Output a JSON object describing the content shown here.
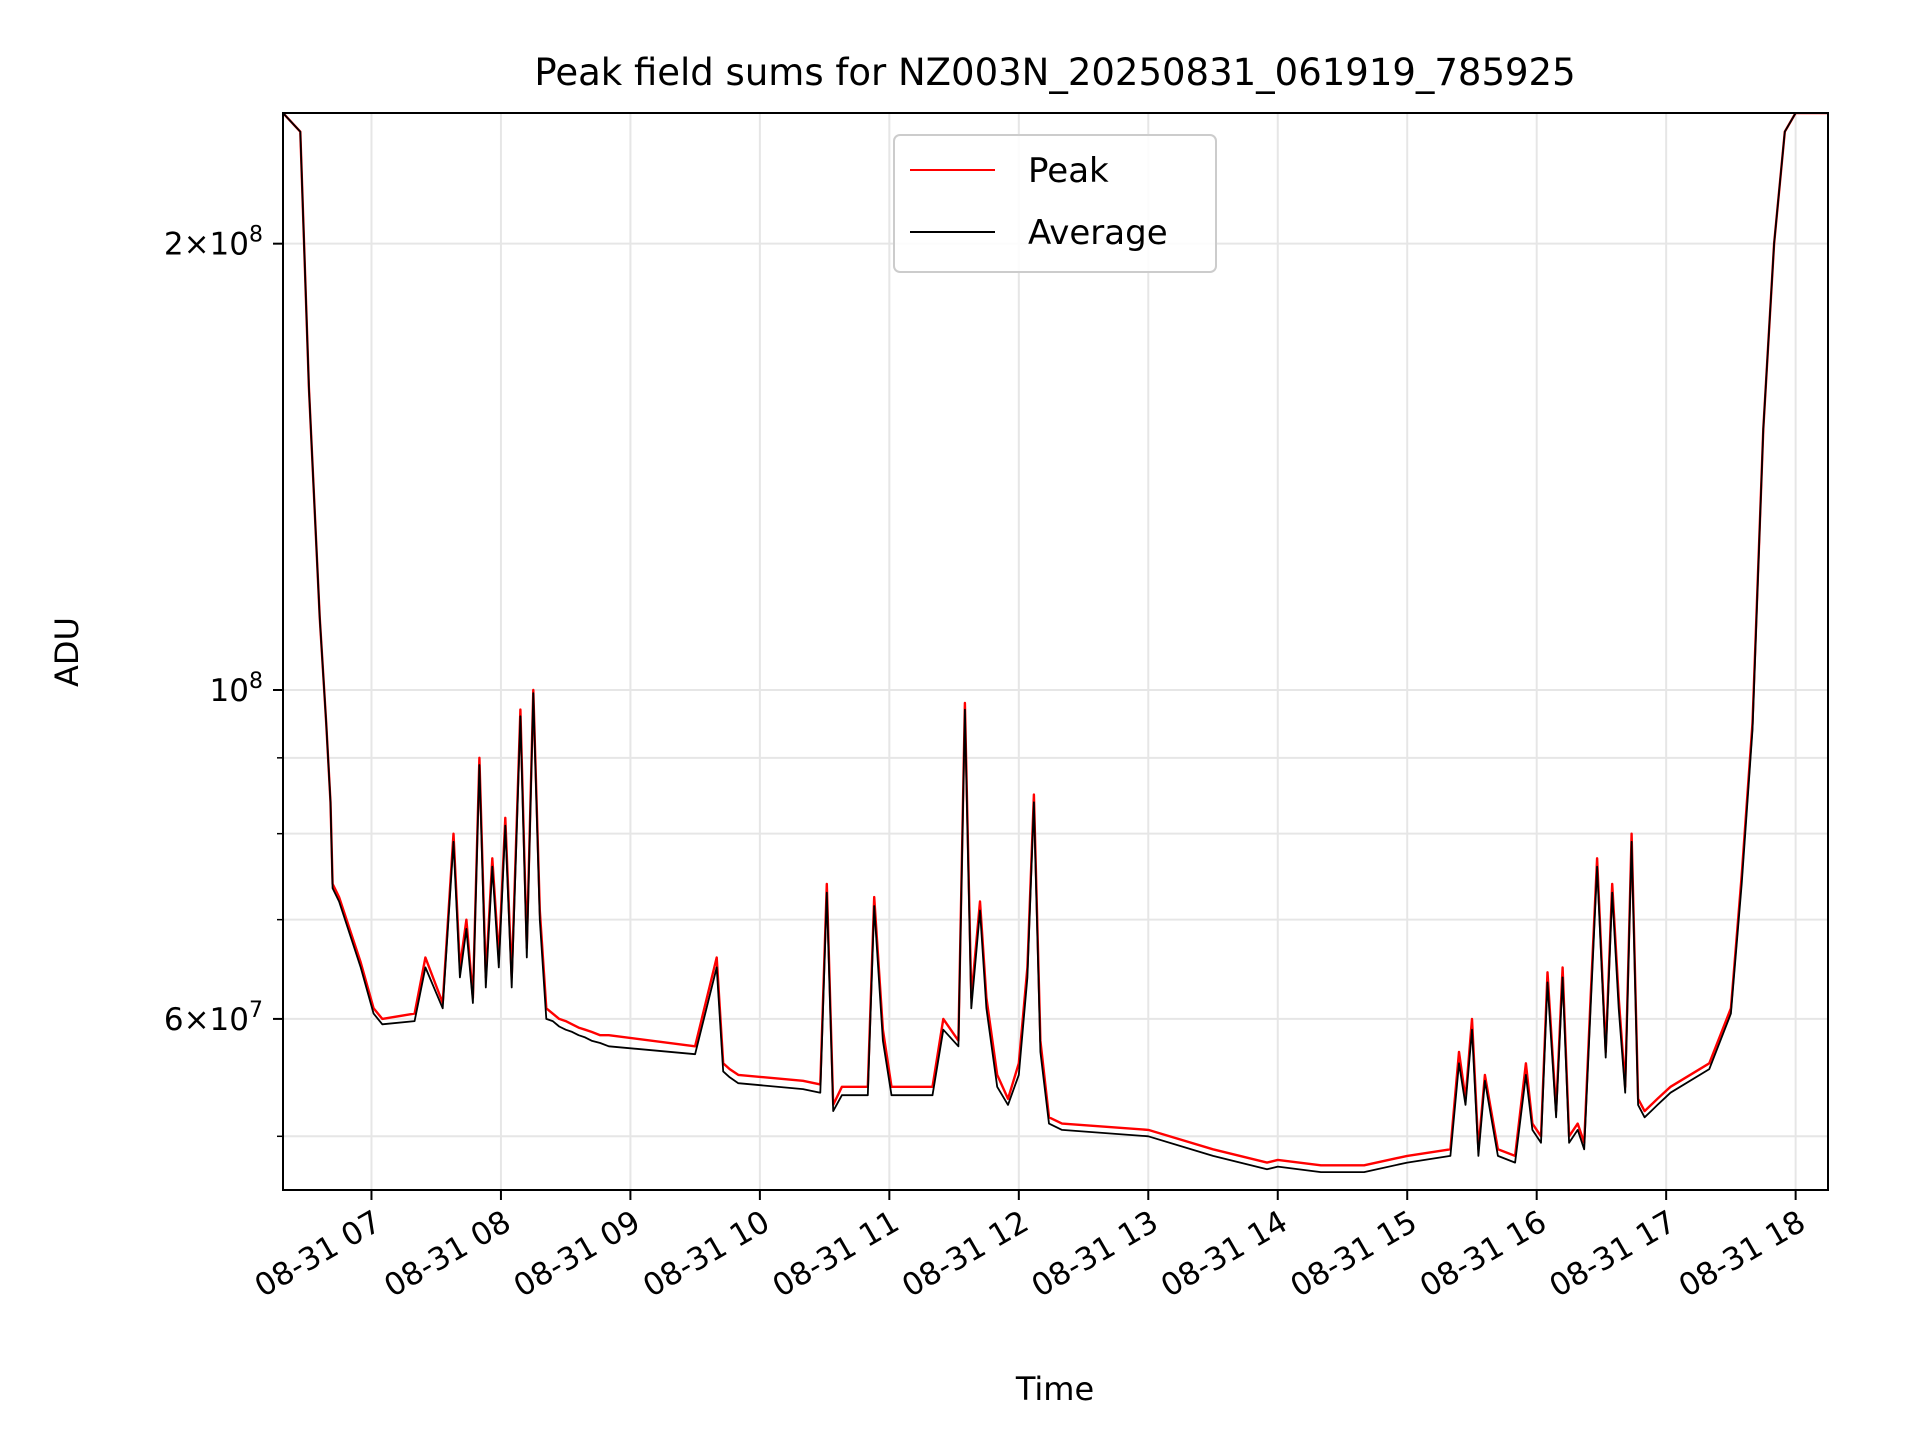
{
  "chart_data": {
    "type": "line",
    "title": "Peak field sums for NZ003N_20250831_061919_785925",
    "xlabel": "Time",
    "ylabel": "ADU",
    "y_scale": "log",
    "xlim": [
      "2025-08-31 06:19",
      "2025-08-31 18:15"
    ],
    "ylim": [
      46000000,
      245000000
    ],
    "grid": true,
    "legend_position": "top-center",
    "x_ticks": [
      {
        "value": "2025-08-31 07:00",
        "label": "08-31 07"
      },
      {
        "value": "2025-08-31 08:00",
        "label": "08-31 08"
      },
      {
        "value": "2025-08-31 09:00",
        "label": "08-31 09"
      },
      {
        "value": "2025-08-31 10:00",
        "label": "08-31 10"
      },
      {
        "value": "2025-08-31 11:00",
        "label": "08-31 11"
      },
      {
        "value": "2025-08-31 12:00",
        "label": "08-31 12"
      },
      {
        "value": "2025-08-31 13:00",
        "label": "08-31 13"
      },
      {
        "value": "2025-08-31 14:00",
        "label": "08-31 14"
      },
      {
        "value": "2025-08-31 15:00",
        "label": "08-31 15"
      },
      {
        "value": "2025-08-31 16:00",
        "label": "08-31 16"
      },
      {
        "value": "2025-08-31 17:00",
        "label": "08-31 17"
      },
      {
        "value": "2025-08-31 18:00",
        "label": "08-31 18"
      }
    ],
    "y_ticks": [
      {
        "value": 60000000,
        "base": "6×10",
        "exp": "7"
      },
      {
        "value": 100000000,
        "base": "10",
        "exp": "8"
      },
      {
        "value": 200000000,
        "base": "2×10",
        "exp": "8"
      }
    ],
    "y_minor_ticks": [
      50000000,
      70000000,
      80000000,
      90000000
    ],
    "series": [
      {
        "name": "Peak",
        "color": "#ff0000",
        "x": [
          "2025-08-31 06:19",
          "2025-08-31 06:27",
          "2025-08-31 06:31",
          "2025-08-31 06:36",
          "2025-08-31 06:39",
          "2025-08-31 06:41",
          "2025-08-31 06:42",
          "2025-08-31 06:45",
          "2025-08-31 06:55",
          "2025-08-31 07:01",
          "2025-08-31 07:05",
          "2025-08-31 07:20",
          "2025-08-31 07:25",
          "2025-08-31 07:33",
          "2025-08-31 07:38",
          "2025-08-31 07:41",
          "2025-08-31 07:44",
          "2025-08-31 07:47",
          "2025-08-31 07:50",
          "2025-08-31 07:53",
          "2025-08-31 07:56",
          "2025-08-31 07:59",
          "2025-08-31 08:02",
          "2025-08-31 08:05",
          "2025-08-31 08:09",
          "2025-08-31 08:12",
          "2025-08-31 08:15",
          "2025-08-31 08:18",
          "2025-08-31 08:21",
          "2025-08-31 08:24",
          "2025-08-31 08:27",
          "2025-08-31 08:30",
          "2025-08-31 08:33",
          "2025-08-31 08:36",
          "2025-08-31 08:39",
          "2025-08-31 08:42",
          "2025-08-31 08:46",
          "2025-08-31 08:50",
          "2025-08-31 09:30",
          "2025-08-31 09:40",
          "2025-08-31 09:43",
          "2025-08-31 09:46",
          "2025-08-31 09:50",
          "2025-08-31 10:20",
          "2025-08-31 10:28",
          "2025-08-31 10:31",
          "2025-08-31 10:34",
          "2025-08-31 10:38",
          "2025-08-31 10:50",
          "2025-08-31 10:53",
          "2025-08-31 10:57",
          "2025-08-31 11:01",
          "2025-08-31 11:20",
          "2025-08-31 11:25",
          "2025-08-31 11:32",
          "2025-08-31 11:35",
          "2025-08-31 11:38",
          "2025-08-31 11:42",
          "2025-08-31 11:45",
          "2025-08-31 11:50",
          "2025-08-31 11:55",
          "2025-08-31 12:00",
          "2025-08-31 12:04",
          "2025-08-31 12:07",
          "2025-08-31 12:10",
          "2025-08-31 12:14",
          "2025-08-31 12:20",
          "2025-08-31 13:00",
          "2025-08-31 13:30",
          "2025-08-31 13:55",
          "2025-08-31 14:00",
          "2025-08-31 14:20",
          "2025-08-31 14:40",
          "2025-08-31 15:00",
          "2025-08-31 15:20",
          "2025-08-31 15:24",
          "2025-08-31 15:27",
          "2025-08-31 15:30",
          "2025-08-31 15:33",
          "2025-08-31 15:36",
          "2025-08-31 15:42",
          "2025-08-31 15:50",
          "2025-08-31 15:55",
          "2025-08-31 15:58",
          "2025-08-31 16:02",
          "2025-08-31 16:05",
          "2025-08-31 16:09",
          "2025-08-31 16:12",
          "2025-08-31 16:15",
          "2025-08-31 16:19",
          "2025-08-31 16:22",
          "2025-08-31 16:25",
          "2025-08-31 16:28",
          "2025-08-31 16:32",
          "2025-08-31 16:35",
          "2025-08-31 16:38",
          "2025-08-31 16:41",
          "2025-08-31 16:44",
          "2025-08-31 16:47",
          "2025-08-31 16:50",
          "2025-08-31 16:53",
          "2025-08-31 16:56",
          "2025-08-31 16:59",
          "2025-08-31 17:02",
          "2025-08-31 17:20",
          "2025-08-31 17:30",
          "2025-08-31 17:35",
          "2025-08-31 17:40",
          "2025-08-31 17:45",
          "2025-08-31 17:50",
          "2025-08-31 17:55",
          "2025-08-31 18:00",
          "2025-08-31 18:05",
          "2025-08-31 18:15"
        ],
        "values": [
          245000000,
          238000000,
          160000000,
          112000000,
          95000000,
          84000000,
          74000000,
          72500000,
          65500000,
          61000000,
          60000000,
          60500000,
          66000000,
          61500000,
          80000000,
          65000000,
          70000000,
          62000000,
          90000000,
          64000000,
          77000000,
          66000000,
          82000000,
          64000000,
          97000000,
          67000000,
          100000000,
          71000000,
          61000000,
          60500000,
          60000000,
          59800000,
          59500000,
          59200000,
          59000000,
          58800000,
          58500000,
          58500000,
          57500000,
          66000000,
          56000000,
          55500000,
          55000000,
          54500000,
          54200000,
          74000000,
          52500000,
          54000000,
          54000000,
          72500000,
          59000000,
          54000000,
          54000000,
          60000000,
          58000000,
          98000000,
          62000000,
          72000000,
          62000000,
          55000000,
          53000000,
          56000000,
          65000000,
          85000000,
          58000000,
          51500000,
          51000000,
          50500000,
          49000000,
          48000000,
          48200000,
          47800000,
          47800000,
          48500000,
          49000000,
          57000000,
          53000000,
          60000000,
          49000000,
          55000000,
          49000000,
          48500000,
          56000000,
          51000000,
          50000000,
          64500000,
          52000000,
          65000000,
          50000000,
          51000000,
          49500000,
          62000000,
          77000000,
          57000000,
          74000000,
          62000000,
          54000000,
          80000000,
          53000000,
          52000000,
          52500000,
          53000000,
          53500000,
          54000000,
          56000000,
          61000000,
          75000000,
          95000000,
          150000000,
          200000000,
          238000000,
          245000000,
          245000000,
          245000000
        ]
      },
      {
        "name": "Average",
        "color": "#000000",
        "x": [
          "2025-08-31 06:19",
          "2025-08-31 06:27",
          "2025-08-31 06:31",
          "2025-08-31 06:36",
          "2025-08-31 06:39",
          "2025-08-31 06:41",
          "2025-08-31 06:42",
          "2025-08-31 06:45",
          "2025-08-31 06:55",
          "2025-08-31 07:01",
          "2025-08-31 07:05",
          "2025-08-31 07:20",
          "2025-08-31 07:25",
          "2025-08-31 07:33",
          "2025-08-31 07:38",
          "2025-08-31 07:41",
          "2025-08-31 07:44",
          "2025-08-31 07:47",
          "2025-08-31 07:50",
          "2025-08-31 07:53",
          "2025-08-31 07:56",
          "2025-08-31 07:59",
          "2025-08-31 08:02",
          "2025-08-31 08:05",
          "2025-08-31 08:09",
          "2025-08-31 08:12",
          "2025-08-31 08:15",
          "2025-08-31 08:18",
          "2025-08-31 08:21",
          "2025-08-31 08:24",
          "2025-08-31 08:27",
          "2025-08-31 08:30",
          "2025-08-31 08:33",
          "2025-08-31 08:36",
          "2025-08-31 08:39",
          "2025-08-31 08:42",
          "2025-08-31 08:46",
          "2025-08-31 08:50",
          "2025-08-31 09:30",
          "2025-08-31 09:40",
          "2025-08-31 09:43",
          "2025-08-31 09:46",
          "2025-08-31 09:50",
          "2025-08-31 10:20",
          "2025-08-31 10:28",
          "2025-08-31 10:31",
          "2025-08-31 10:34",
          "2025-08-31 10:38",
          "2025-08-31 10:50",
          "2025-08-31 10:53",
          "2025-08-31 10:57",
          "2025-08-31 11:01",
          "2025-08-31 11:20",
          "2025-08-31 11:25",
          "2025-08-31 11:32",
          "2025-08-31 11:35",
          "2025-08-31 11:38",
          "2025-08-31 11:42",
          "2025-08-31 11:45",
          "2025-08-31 11:50",
          "2025-08-31 11:55",
          "2025-08-31 12:00",
          "2025-08-31 12:04",
          "2025-08-31 12:07",
          "2025-08-31 12:10",
          "2025-08-31 12:14",
          "2025-08-31 12:20",
          "2025-08-31 13:00",
          "2025-08-31 13:30",
          "2025-08-31 13:55",
          "2025-08-31 14:00",
          "2025-08-31 14:20",
          "2025-08-31 14:40",
          "2025-08-31 15:00",
          "2025-08-31 15:20",
          "2025-08-31 15:24",
          "2025-08-31 15:27",
          "2025-08-31 15:30",
          "2025-08-31 15:33",
          "2025-08-31 15:36",
          "2025-08-31 15:42",
          "2025-08-31 15:50",
          "2025-08-31 15:55",
          "2025-08-31 15:58",
          "2025-08-31 16:02",
          "2025-08-31 16:05",
          "2025-08-31 16:09",
          "2025-08-31 16:12",
          "2025-08-31 16:15",
          "2025-08-31 16:19",
          "2025-08-31 16:22",
          "2025-08-31 16:25",
          "2025-08-31 16:28",
          "2025-08-31 16:32",
          "2025-08-31 16:35",
          "2025-08-31 16:38",
          "2025-08-31 16:41",
          "2025-08-31 16:44",
          "2025-08-31 16:47",
          "2025-08-31 16:50",
          "2025-08-31 16:53",
          "2025-08-31 16:56",
          "2025-08-31 16:59",
          "2025-08-31 17:02",
          "2025-08-31 17:20",
          "2025-08-31 17:30",
          "2025-08-31 17:35",
          "2025-08-31 17:40",
          "2025-08-31 17:45",
          "2025-08-31 17:50",
          "2025-08-31 17:55",
          "2025-08-31 18:00",
          "2025-08-31 18:05",
          "2025-08-31 18:15"
        ],
        "values": [
          245000000,
          238000000,
          160000000,
          112000000,
          95000000,
          84000000,
          73500000,
          72000000,
          65000000,
          60500000,
          59500000,
          59800000,
          65000000,
          61000000,
          79000000,
          64000000,
          69000000,
          61500000,
          89000000,
          63000000,
          76000000,
          65000000,
          81000000,
          63000000,
          96000000,
          66000000,
          99500000,
          70000000,
          60000000,
          59800000,
          59300000,
          59000000,
          58800000,
          58500000,
          58300000,
          58000000,
          57800000,
          57500000,
          56800000,
          65000000,
          55300000,
          54800000,
          54300000,
          53800000,
          53500000,
          73000000,
          52000000,
          53300000,
          53300000,
          71500000,
          58000000,
          53300000,
          53300000,
          59000000,
          57500000,
          97000000,
          61000000,
          71000000,
          61000000,
          54000000,
          52500000,
          55000000,
          64000000,
          84000000,
          57000000,
          51000000,
          50500000,
          50000000,
          48500000,
          47500000,
          47700000,
          47300000,
          47300000,
          48000000,
          48500000,
          56000000,
          52500000,
          59000000,
          48500000,
          54500000,
          48500000,
          48000000,
          55000000,
          50500000,
          49500000,
          63500000,
          51500000,
          64000000,
          49500000,
          50500000,
          49000000,
          61000000,
          76000000,
          56500000,
          73000000,
          61000000,
          53500000,
          79000000,
          52500000,
          51500000,
          52000000,
          52500000,
          53000000,
          53500000,
          55500000,
          60500000,
          74000000,
          94000000,
          150000000,
          200000000,
          238000000,
          245000000,
          245000000,
          245000000
        ]
      }
    ]
  }
}
